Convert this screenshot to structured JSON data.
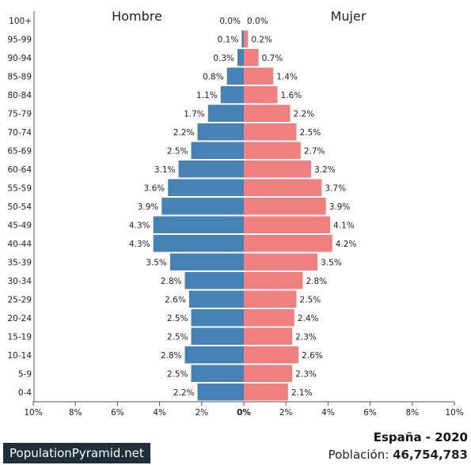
{
  "chart_data": {
    "type": "bar",
    "orientation": "horizontal-pyramid",
    "series_left_label": "Hombre",
    "series_right_label": "Mujer",
    "colors": {
      "male": "#4682b4",
      "female": "#f08080",
      "axis": "#555555"
    },
    "categories": [
      "100+",
      "95-99",
      "90-94",
      "85-89",
      "80-84",
      "75-79",
      "70-74",
      "65-69",
      "60-64",
      "55-59",
      "50-54",
      "45-49",
      "40-44",
      "35-39",
      "30-34",
      "25-29",
      "20-24",
      "15-19",
      "10-14",
      "5-9",
      "0-4"
    ],
    "series": [
      {
        "name": "Hombre",
        "values": [
          0.0,
          0.1,
          0.3,
          0.8,
          1.1,
          1.7,
          2.2,
          2.5,
          3.1,
          3.6,
          3.9,
          4.3,
          4.3,
          3.5,
          2.8,
          2.6,
          2.5,
          2.5,
          2.8,
          2.5,
          2.2
        ]
      },
      {
        "name": "Mujer",
        "values": [
          0.0,
          0.2,
          0.7,
          1.4,
          1.6,
          2.2,
          2.5,
          2.7,
          3.2,
          3.7,
          3.9,
          4.1,
          4.2,
          3.5,
          2.8,
          2.5,
          2.4,
          2.3,
          2.6,
          2.3,
          2.1
        ]
      }
    ],
    "value_labels_left": [
      "0.0%",
      "0.1%",
      "0.3%",
      "0.8%",
      "1.1%",
      "1.7%",
      "2.2%",
      "2.5%",
      "3.1%",
      "3.6%",
      "3.9%",
      "4.3%",
      "4.3%",
      "3.5%",
      "2.8%",
      "2.6%",
      "2.5%",
      "2.5%",
      "2.8%",
      "2.5%",
      "2.2%"
    ],
    "value_labels_right": [
      "0.0%",
      "0.2%",
      "0.7%",
      "1.4%",
      "1.6%",
      "2.2%",
      "2.5%",
      "2.7%",
      "3.2%",
      "3.7%",
      "3.9%",
      "4.1%",
      "4.2%",
      "3.5%",
      "2.8%",
      "2.5%",
      "2.4%",
      "2.3%",
      "2.6%",
      "2.3%",
      "2.1%"
    ],
    "xlim": [
      -10,
      10
    ],
    "x_ticks": [
      -10,
      -8,
      -6,
      -4,
      -2,
      0,
      2,
      4,
      6,
      8,
      10
    ],
    "x_tick_labels": [
      "10%",
      "8%",
      "6%",
      "4%",
      "2%",
      "0%",
      "2%",
      "4%",
      "6%",
      "8%",
      "10%"
    ],
    "grid": false
  },
  "footer": {
    "brand": "PopulationPyramid.net",
    "country_year": "España - 2020",
    "population_label": "Población:",
    "population_value": "46,754,783"
  }
}
